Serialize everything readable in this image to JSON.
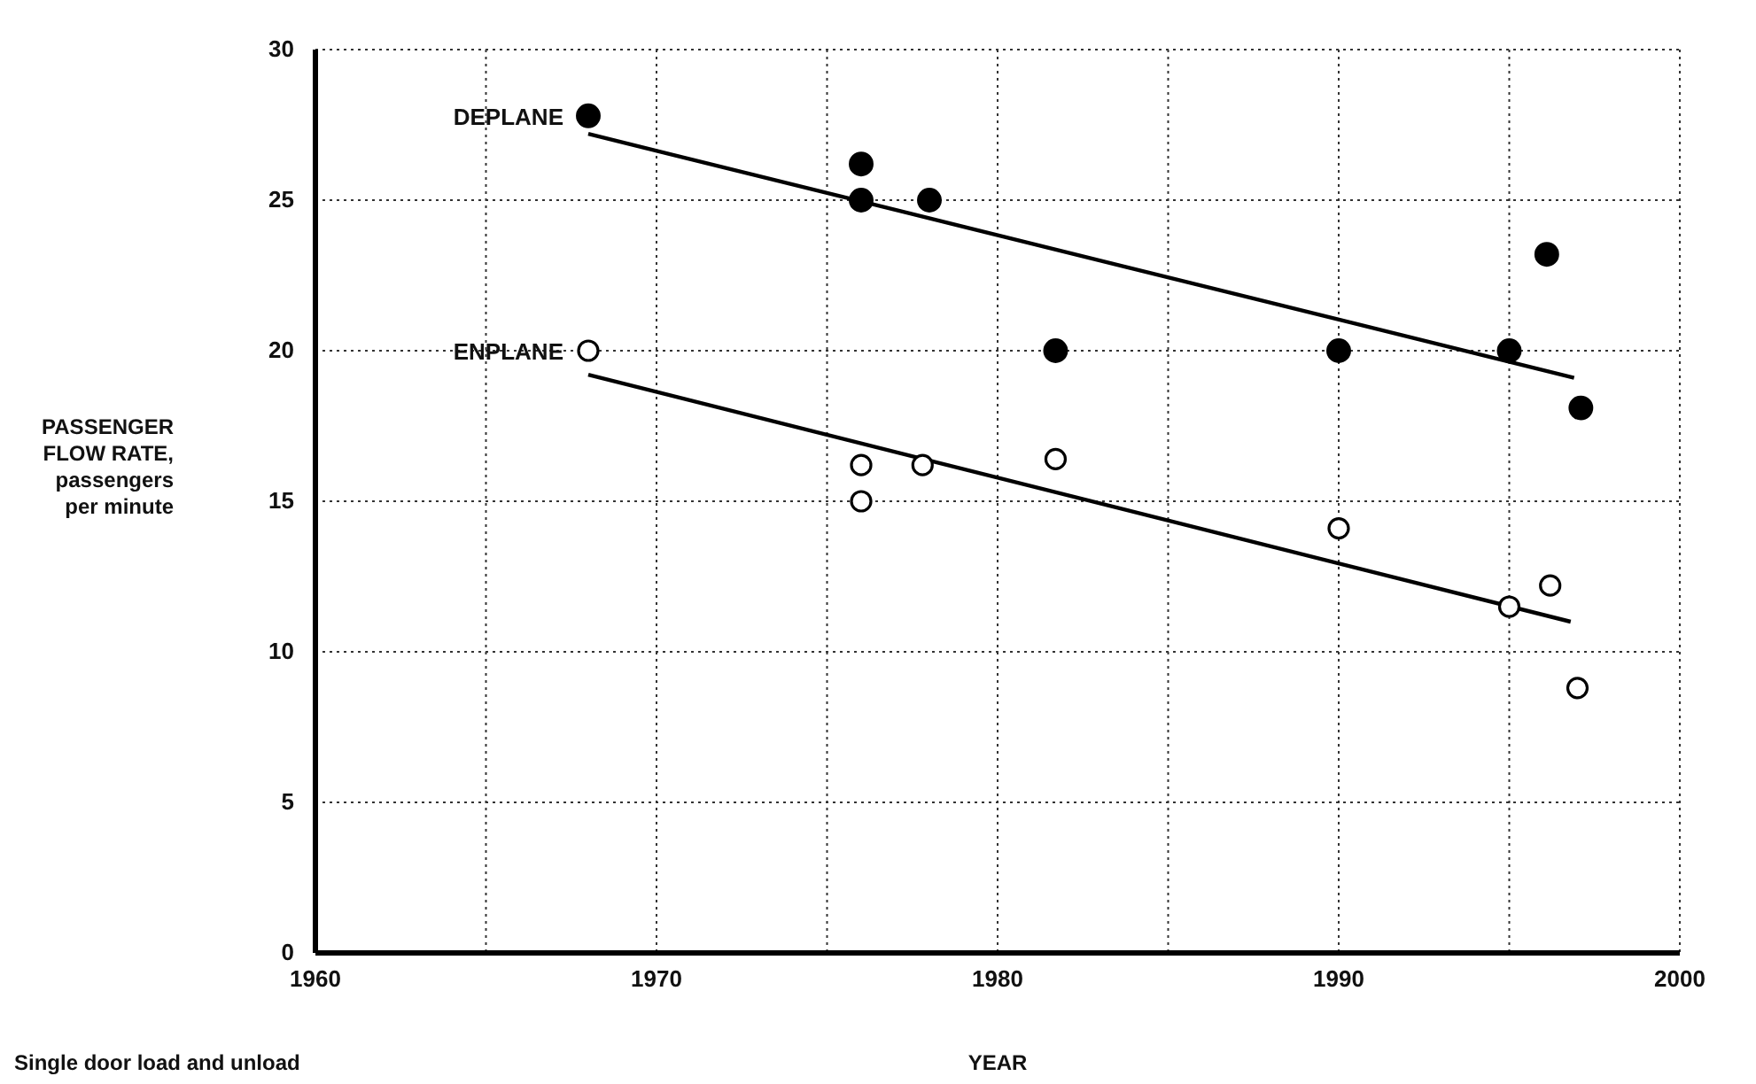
{
  "chart_data": {
    "type": "scatter",
    "xlabel": "YEAR",
    "ylabel": "PASSENGER FLOW RATE, passengers per minute",
    "annotations": [
      "Single door load and unload"
    ],
    "xlim": [
      1960,
      2000
    ],
    "ylim": [
      0,
      30
    ],
    "xticks": [
      1960,
      {
        "value": 1965,
        "label": null
      },
      1970,
      {
        "value": 1975,
        "label": null
      },
      1980,
      {
        "value": 1985,
        "label": null
      },
      1990,
      {
        "value": 1995,
        "label": null
      },
      2000
    ],
    "yticks": [
      0,
      5,
      10,
      15,
      20,
      25,
      30
    ],
    "grid": true,
    "series": [
      {
        "name": "DEPLANE",
        "marker": "circle",
        "color": "#000000",
        "x": [
          1968,
          1976,
          1976,
          1978,
          1981.7,
          1990,
          1995,
          1996.1,
          1997.1
        ],
        "values": [
          27.8,
          26.2,
          25,
          25,
          20,
          20,
          20,
          23.2,
          18.1
        ]
      },
      {
        "name": "ENPLANE",
        "marker": "circle",
        "color": "#000000",
        "x": [
          1968,
          1976,
          1976,
          1977.8,
          1981.7,
          1990,
          1995,
          1996.2,
          1997
        ],
        "values": [
          20,
          16.2,
          15,
          16.2,
          16.4,
          14.1,
          11.5,
          12.2,
          8.8
        ]
      },
      {
        "type": "line",
        "marker": "none",
        "color": "#000000",
        "line_style": "solid",
        "x": [
          1968,
          1996.9
        ],
        "values": [
          27.2,
          19.1
        ]
      },
      {
        "type": "line",
        "marker": "none",
        "color": "#000000",
        "line_style": "solid",
        "x": [
          1968,
          1996.8
        ],
        "values": [
          19.2,
          11
        ]
      }
    ]
  }
}
